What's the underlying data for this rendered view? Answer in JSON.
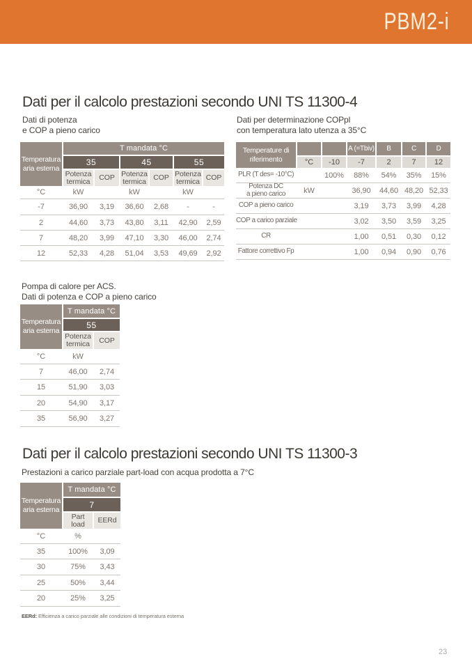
{
  "header": {
    "brand": "PBM2-i",
    "bar_color": "#E0752F",
    "brand_color": "#F8EFDC"
  },
  "colors": {
    "header_brown": "#978D84",
    "header_dark": "#6B6158",
    "header_light": "#E9E5E1",
    "header_light2": "#DEDAD6",
    "rule": "#C9C5C1",
    "data_text": "#7D746C",
    "title_text": "#3C3832"
  },
  "section1": {
    "title": "Dati per il calcolo prestazioni secondo UNI TS 11300-4",
    "left": {
      "subtitle": "Dati di potenza\ne COP a pieno carico",
      "table": {
        "corner": "Temperatura\naria esterna",
        "band": "T mandata °C",
        "groups": [
          "35",
          "45",
          "55"
        ],
        "columns": [
          "Potenza\ntermica",
          "COP",
          "Potenza\ntermica",
          "COP",
          "Potenza\ntermica",
          "COP"
        ],
        "units": [
          "°C",
          "kW",
          "",
          "kW",
          "",
          "kW",
          ""
        ],
        "rows": [
          [
            "-7",
            "36,90",
            "3,19",
            "36,60",
            "2,68",
            "-",
            "-"
          ],
          [
            "2",
            "44,60",
            "3,73",
            "43,80",
            "3,11",
            "42,90",
            "2,59"
          ],
          [
            "7",
            "48,20",
            "3,99",
            "47,10",
            "3,30",
            "46,00",
            "2,74"
          ],
          [
            "12",
            "52,33",
            "4,28",
            "51,04",
            "3,53",
            "49,69",
            "2,92"
          ]
        ]
      }
    },
    "right": {
      "subtitle": "Dati per determinazione COPpl\ncon temperatura lato utenza a 35°C",
      "table": {
        "corner": "Temperature di\nriferimento",
        "top_headers": [
          "A (=Tbiv)",
          "B",
          "C",
          "D"
        ],
        "sub_headers": [
          "°C",
          "-10",
          "-7",
          "2",
          "7",
          "12"
        ],
        "rows": [
          [
            "PLR (T des= -10°C)",
            "",
            "100%",
            "88%",
            "54%",
            "35%",
            "15%"
          ],
          [
            "Potenza DC\na pieno carico",
            "kW",
            "",
            "36,90",
            "44,60",
            "48,20",
            "52,33"
          ],
          [
            "COP a pieno carico",
            "",
            "",
            "3,19",
            "3,73",
            "3,99",
            "4,28"
          ],
          [
            "COP a carico parziale",
            "",
            "",
            "3,02",
            "3,50",
            "3,59",
            "3,25"
          ],
          [
            "CR",
            "",
            "",
            "1,00",
            "0,51",
            "0,30",
            "0,12"
          ],
          [
            "Fattore correttivo Fp",
            "",
            "",
            "1,00",
            "0,94",
            "0,90",
            "0,76"
          ]
        ]
      }
    }
  },
  "section2": {
    "title": "Pompa di calore per ACS.\nDati di potenza e COP a pieno carico",
    "table": {
      "corner": "Temperatura\naria esterna",
      "band": "T mandata °C",
      "groups": [
        "55"
      ],
      "columns": [
        "Potenza\ntermica",
        "COP"
      ],
      "units": [
        "°C",
        "kW",
        ""
      ],
      "rows": [
        [
          "7",
          "46,00",
          "2,74"
        ],
        [
          "15",
          "51,90",
          "3,03"
        ],
        [
          "20",
          "54,90",
          "3,17"
        ],
        [
          "35",
          "56,90",
          "3,27"
        ]
      ]
    }
  },
  "section3": {
    "title": "Dati per il calcolo prestazioni secondo UNI TS 11300-3",
    "subtitle": "Prestazioni a carico parziale part-load con acqua prodotta a 7°C",
    "table": {
      "corner": "Temperatura\naria esterna",
      "band": "T mandata °C",
      "groups": [
        "7"
      ],
      "columns": [
        "Part\nload",
        "EERd"
      ],
      "units": [
        "°C",
        "%",
        ""
      ],
      "rows": [
        [
          "35",
          "100%",
          "3,09"
        ],
        [
          "30",
          "75%",
          "3,43"
        ],
        [
          "25",
          "50%",
          "3,44"
        ],
        [
          "20",
          "25%",
          "3,25"
        ]
      ]
    }
  },
  "footnote": {
    "label": "EERd:",
    "text": "Efficienza a carico parziale alle condizioni di temperatura esterna"
  },
  "footer": {
    "page_number": "23"
  }
}
